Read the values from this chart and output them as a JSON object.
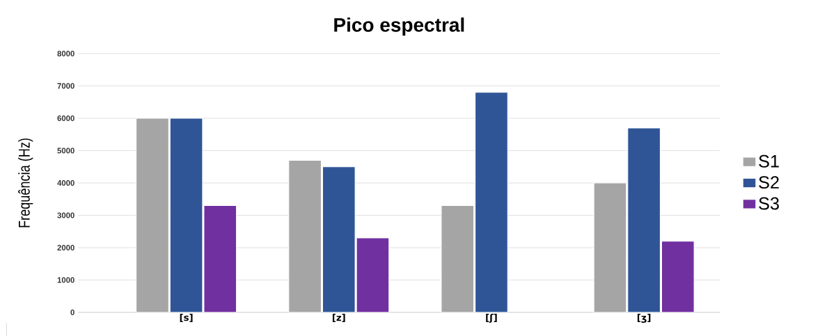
{
  "chart_data": {
    "type": "bar",
    "title": "Pico espectral",
    "ylabel": "Frequência (Hz)",
    "categories": [
      "[s]",
      "[z]",
      "[ʃ]",
      "[ʒ]"
    ],
    "series": [
      {
        "name": "S1",
        "color": "#a5a5a5",
        "values": [
          6000,
          4700,
          3300,
          4000
        ]
      },
      {
        "name": "S2",
        "color": "#2f5597",
        "values": [
          6000,
          4500,
          6800,
          5700
        ]
      },
      {
        "name": "S3",
        "color": "#7030a0",
        "values": [
          3300,
          2300,
          null,
          2200
        ]
      }
    ],
    "ylim": [
      0,
      8000
    ],
    "yticks": [
      0,
      1000,
      2000,
      3000,
      4000,
      5000,
      6000,
      7000,
      8000
    ],
    "grid": "y",
    "legend": "right"
  }
}
